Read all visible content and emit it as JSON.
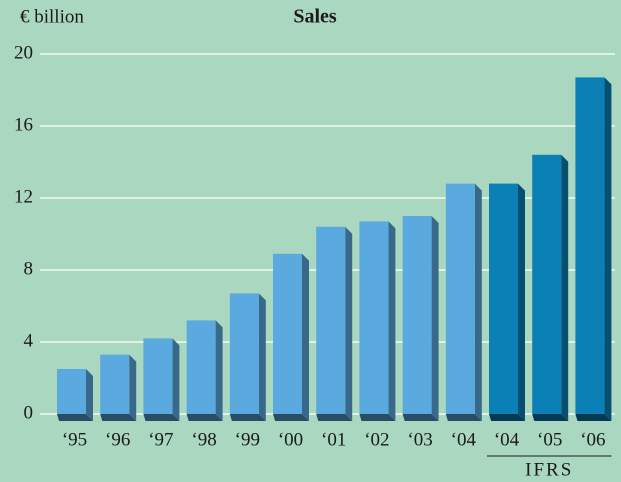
{
  "chart_data": {
    "type": "bar",
    "title": "Sales",
    "y_label": "€ billion",
    "categories": [
      "‘95",
      "‘96",
      "‘97",
      "‘98",
      "‘99",
      "‘00",
      "‘01",
      "‘02",
      "‘03",
      "‘04",
      "‘04",
      "‘05",
      "‘06"
    ],
    "values": [
      2.5,
      3.3,
      4.2,
      5.2,
      6.7,
      8.9,
      10.4,
      10.7,
      11.0,
      12.8,
      12.8,
      14.4,
      18.7
    ],
    "colors": [
      "#5aaae0",
      "#5aaae0",
      "#5aaae0",
      "#5aaae0",
      "#5aaae0",
      "#5aaae0",
      "#5aaae0",
      "#5aaae0",
      "#5aaae0",
      "#5aaae0",
      "#0a80b6",
      "#0a80b6",
      "#0a80b6"
    ],
    "ylim": [
      0,
      20
    ],
    "yticks": [
      0,
      4,
      8,
      12,
      16,
      20
    ],
    "grid": true,
    "annotations": [
      {
        "text": "IFRS"
      }
    ]
  }
}
